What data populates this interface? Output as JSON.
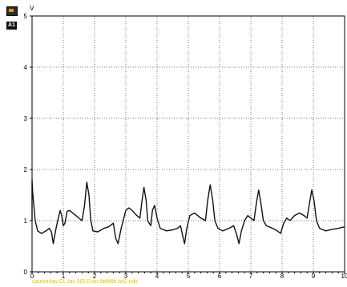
{
  "header": {
    "channel_badge": "A1",
    "unit": "V"
  },
  "footer": {
    "note": "cauconlap.CL.tac.ND.D.tin.tbtNtbt.ho2 nds"
  },
  "chart_data": {
    "type": "line",
    "title": "",
    "xlabel": "",
    "ylabel": "V",
    "xlim": [
      0,
      10
    ],
    "ylim": [
      0,
      5
    ],
    "grid": true,
    "x_ticks": [
      0,
      1,
      2,
      3,
      4,
      5,
      6,
      7,
      8,
      9,
      10
    ],
    "y_ticks": [
      0,
      1,
      2,
      3,
      4,
      5
    ],
    "series": [
      {
        "name": "",
        "color": "#111111",
        "points": [
          [
            -0.35,
            1.0
          ],
          [
            -0.2,
            1.0
          ],
          [
            -0.12,
            1.35
          ],
          [
            -0.05,
            1.8
          ],
          [
            0.02,
            1.55
          ],
          [
            0.1,
            1.0
          ],
          [
            0.18,
            0.8
          ],
          [
            0.3,
            0.75
          ],
          [
            0.45,
            0.8
          ],
          [
            0.55,
            0.85
          ],
          [
            0.62,
            0.78
          ],
          [
            0.68,
            0.55
          ],
          [
            0.75,
            0.8
          ],
          [
            0.82,
            1.0
          ],
          [
            0.9,
            1.2
          ],
          [
            0.95,
            1.1
          ],
          [
            1.0,
            0.9
          ],
          [
            1.05,
            0.95
          ],
          [
            1.12,
            1.18
          ],
          [
            1.2,
            1.2
          ],
          [
            1.3,
            1.15
          ],
          [
            1.4,
            1.1
          ],
          [
            1.5,
            1.05
          ],
          [
            1.6,
            1.0
          ],
          [
            1.68,
            1.3
          ],
          [
            1.75,
            1.75
          ],
          [
            1.82,
            1.5
          ],
          [
            1.88,
            1.0
          ],
          [
            1.95,
            0.8
          ],
          [
            2.1,
            0.78
          ],
          [
            2.3,
            0.85
          ],
          [
            2.45,
            0.88
          ],
          [
            2.6,
            0.95
          ],
          [
            2.68,
            0.65
          ],
          [
            2.75,
            0.55
          ],
          [
            2.85,
            0.85
          ],
          [
            3.0,
            1.2
          ],
          [
            3.1,
            1.25
          ],
          [
            3.2,
            1.2
          ],
          [
            3.35,
            1.1
          ],
          [
            3.45,
            1.05
          ],
          [
            3.52,
            1.4
          ],
          [
            3.58,
            1.65
          ],
          [
            3.65,
            1.4
          ],
          [
            3.7,
            1.0
          ],
          [
            3.8,
            0.9
          ],
          [
            3.85,
            1.2
          ],
          [
            3.92,
            1.3
          ],
          [
            4.0,
            1.05
          ],
          [
            4.1,
            0.85
          ],
          [
            4.3,
            0.8
          ],
          [
            4.5,
            0.82
          ],
          [
            4.65,
            0.85
          ],
          [
            4.75,
            0.9
          ],
          [
            4.82,
            0.7
          ],
          [
            4.88,
            0.55
          ],
          [
            4.95,
            0.85
          ],
          [
            5.05,
            1.1
          ],
          [
            5.2,
            1.15
          ],
          [
            5.4,
            1.05
          ],
          [
            5.55,
            1.0
          ],
          [
            5.62,
            1.4
          ],
          [
            5.7,
            1.7
          ],
          [
            5.78,
            1.4
          ],
          [
            5.85,
            1.0
          ],
          [
            5.95,
            0.85
          ],
          [
            6.1,
            0.8
          ],
          [
            6.3,
            0.85
          ],
          [
            6.45,
            0.9
          ],
          [
            6.55,
            0.72
          ],
          [
            6.62,
            0.55
          ],
          [
            6.7,
            0.8
          ],
          [
            6.8,
            1.0
          ],
          [
            6.9,
            1.1
          ],
          [
            7.0,
            1.05
          ],
          [
            7.1,
            1.0
          ],
          [
            7.18,
            1.35
          ],
          [
            7.25,
            1.6
          ],
          [
            7.32,
            1.35
          ],
          [
            7.4,
            1.0
          ],
          [
            7.5,
            0.9
          ],
          [
            7.7,
            0.85
          ],
          [
            7.85,
            0.8
          ],
          [
            7.95,
            0.75
          ],
          [
            8.05,
            0.95
          ],
          [
            8.15,
            1.05
          ],
          [
            8.25,
            1.0
          ],
          [
            8.4,
            1.1
          ],
          [
            8.55,
            1.15
          ],
          [
            8.7,
            1.1
          ],
          [
            8.8,
            1.05
          ],
          [
            8.88,
            1.35
          ],
          [
            8.95,
            1.6
          ],
          [
            9.02,
            1.4
          ],
          [
            9.1,
            1.0
          ],
          [
            9.2,
            0.85
          ],
          [
            9.4,
            0.8
          ],
          [
            9.6,
            0.83
          ],
          [
            9.8,
            0.85
          ],
          [
            10.0,
            0.88
          ]
        ]
      }
    ]
  }
}
